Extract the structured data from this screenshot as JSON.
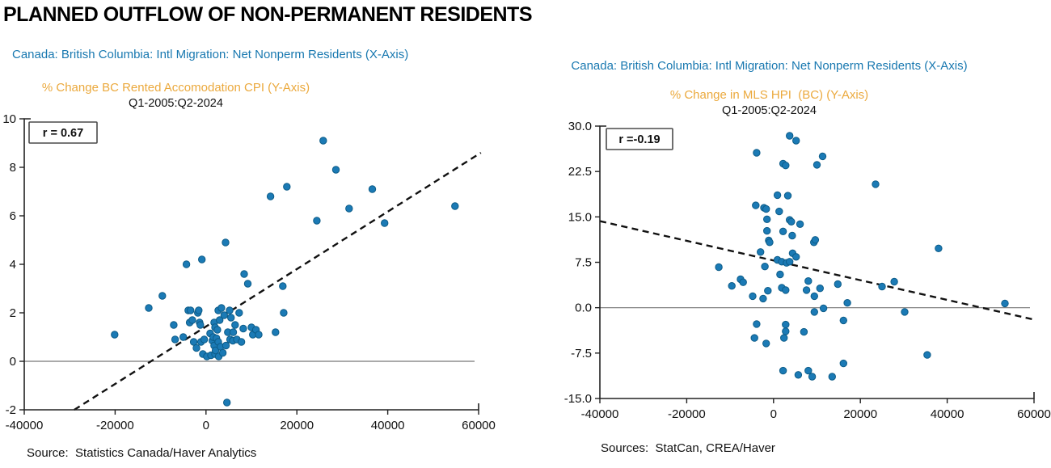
{
  "page": {
    "title": "PLANNED OUTFLOW OF NON-PERMANENT RESIDENTS"
  },
  "colors": {
    "header_blue": "#1878b0",
    "header_orange": "#eba93d",
    "r_red": "#a01c32",
    "dot_fill": "#1b7ab5",
    "dot_stroke": "#0d5c88",
    "axis": "#222222",
    "zero_line": "#777777",
    "trend": "#111111",
    "r_box_border": "#4a4a4a"
  },
  "chart_data": [
    {
      "type": "scatter",
      "x_axis_title": "Canada: British Columbia: Intl Migration: Net Nonperm Residents (X-Axis)",
      "y_axis_title": "% Change BC Rented Accomodation CPI (Y-Axis)",
      "period": "Q1-2005:Q2-2024",
      "r_label": "r = 0.67",
      "source": "Source:  Statistics Canada/Haver Analytics",
      "xlim": [
        -40000,
        60000
      ],
      "ylim": [
        -2,
        10
      ],
      "x_tick_values": [
        -40000,
        -20000,
        0,
        20000,
        40000,
        60000
      ],
      "x_tick_labels": [
        "-40000",
        "-20000",
        "0",
        "20000",
        "40000",
        "60000"
      ],
      "y_tick_values": [
        10,
        8,
        6,
        4,
        2,
        0,
        -2
      ],
      "y_tick_labels": [
        "10",
        "8",
        "6",
        "4",
        "2",
        "0",
        "-2"
      ],
      "zero_line": true,
      "legend_position": "top-left",
      "grid": false,
      "trendline": {
        "style": "dashed",
        "x1": -29000,
        "y1": -2.0,
        "x2": 60500,
        "y2": 8.6
      },
      "points": [
        [
          -20100,
          1.1
        ],
        [
          -12600,
          2.2
        ],
        [
          -9600,
          2.7
        ],
        [
          -7100,
          1.5
        ],
        [
          -6800,
          0.9
        ],
        [
          -5000,
          1.0
        ],
        [
          -4300,
          4.0
        ],
        [
          -3900,
          2.1
        ],
        [
          -3600,
          1.6
        ],
        [
          -3400,
          2.1
        ],
        [
          -3000,
          1.7
        ],
        [
          -2700,
          0.8
        ],
        [
          -2100,
          0.55
        ],
        [
          -1800,
          2.0
        ],
        [
          -1600,
          2.1
        ],
        [
          -1400,
          1.6
        ],
        [
          -1250,
          1.5
        ],
        [
          -1100,
          0.8
        ],
        [
          -900,
          4.2
        ],
        [
          -700,
          0.3
        ],
        [
          -400,
          0.9
        ],
        [
          200,
          0.2
        ],
        [
          900,
          1.15
        ],
        [
          1100,
          0.25
        ],
        [
          1400,
          0.85
        ],
        [
          1600,
          1.0
        ],
        [
          1800,
          1.6
        ],
        [
          1800,
          0.65
        ],
        [
          2000,
          1.4
        ],
        [
          2000,
          0.3
        ],
        [
          2100,
          0.45
        ],
        [
          2300,
          0.95
        ],
        [
          2500,
          1.3
        ],
        [
          2700,
          2.1
        ],
        [
          2700,
          0.8
        ],
        [
          2800,
          0.2
        ],
        [
          3000,
          1.7
        ],
        [
          3200,
          0.6
        ],
        [
          3400,
          2.2
        ],
        [
          3700,
          0.35
        ],
        [
          4000,
          1.9
        ],
        [
          4300,
          4.9
        ],
        [
          4400,
          0.65
        ],
        [
          4600,
          -1.7
        ],
        [
          4800,
          1.2
        ],
        [
          5200,
          2.1
        ],
        [
          5300,
          0.9
        ],
        [
          5500,
          1.8
        ],
        [
          5900,
          0.85
        ],
        [
          6000,
          1.2
        ],
        [
          6400,
          1.5
        ],
        [
          6800,
          0.9
        ],
        [
          7300,
          2.0
        ],
        [
          7800,
          0.8
        ],
        [
          8200,
          1.35
        ],
        [
          8400,
          3.6
        ],
        [
          9200,
          3.2
        ],
        [
          10000,
          1.4
        ],
        [
          10300,
          1.1
        ],
        [
          11000,
          1.3
        ],
        [
          11600,
          1.1
        ],
        [
          14200,
          6.8
        ],
        [
          15300,
          1.2
        ],
        [
          16900,
          3.1
        ],
        [
          17100,
          2.0
        ],
        [
          17800,
          7.2
        ],
        [
          24400,
          5.8
        ],
        [
          25800,
          9.1
        ],
        [
          28600,
          7.9
        ],
        [
          31500,
          6.3
        ],
        [
          36600,
          7.1
        ],
        [
          39300,
          5.7
        ],
        [
          54800,
          6.4
        ]
      ]
    },
    {
      "type": "scatter",
      "x_axis_title": "Canada: British Columbia: Intl Migration: Net Nonperm Residents (X-Axis)",
      "y_axis_title": "% Change in MLS HPI  (BC) (Y-Axis)",
      "period": "Q1-2005:Q2-2024",
      "r_label": "r =-0.19",
      "source": "Sources:  StatCan, CREA/Haver",
      "xlim": [
        -40000,
        60000
      ],
      "ylim": [
        -15,
        30
      ],
      "x_tick_values": [
        -40000,
        -20000,
        0,
        20000,
        40000,
        60000
      ],
      "x_tick_labels": [
        "-40000",
        "-20000",
        "0",
        "20000",
        "40000",
        "60000"
      ],
      "y_tick_values": [
        30,
        22.5,
        15,
        7.5,
        0,
        -7.5,
        -15
      ],
      "y_tick_labels": [
        "30.0",
        "22.5",
        "15.0",
        "7.5",
        "0.0",
        "-7.5",
        "-15.0"
      ],
      "zero_line": true,
      "legend_position": "top-left",
      "grid": false,
      "trendline": {
        "style": "dashed",
        "x1": -40000,
        "y1": 14.3,
        "x2": 59600,
        "y2": -1.9
      },
      "points": [
        [
          -12600,
          6.7
        ],
        [
          -9600,
          3.6
        ],
        [
          -7600,
          4.7
        ],
        [
          -7000,
          4.2
        ],
        [
          -4800,
          1.9
        ],
        [
          -4400,
          -5.0
        ],
        [
          -4100,
          16.9
        ],
        [
          -3900,
          25.6
        ],
        [
          -3900,
          -2.7
        ],
        [
          -3000,
          9.2
        ],
        [
          -2400,
          1.5
        ],
        [
          -2200,
          16.5
        ],
        [
          -2000,
          6.8
        ],
        [
          -1700,
          16.3
        ],
        [
          -1700,
          -5.9
        ],
        [
          -1500,
          14.6
        ],
        [
          -1500,
          12.7
        ],
        [
          -1300,
          2.8
        ],
        [
          -1100,
          11.1
        ],
        [
          -900,
          10.8
        ],
        [
          900,
          18.6
        ],
        [
          900,
          7.9
        ],
        [
          1300,
          15.9
        ],
        [
          1500,
          5.5
        ],
        [
          1900,
          7.6
        ],
        [
          1900,
          3.3
        ],
        [
          2200,
          23.8
        ],
        [
          2200,
          12.6
        ],
        [
          2200,
          -10.4
        ],
        [
          2400,
          -5.0
        ],
        [
          2800,
          23.5
        ],
        [
          2800,
          2.9
        ],
        [
          2800,
          -2.8
        ],
        [
          2800,
          -3.9
        ],
        [
          3000,
          7.4
        ],
        [
          3300,
          18.5
        ],
        [
          3700,
          28.4
        ],
        [
          3700,
          14.5
        ],
        [
          3700,
          7.6
        ],
        [
          4100,
          14.2
        ],
        [
          4300,
          11.9
        ],
        [
          4400,
          9.0
        ],
        [
          5200,
          27.6
        ],
        [
          5200,
          8.4
        ],
        [
          5700,
          -11.1
        ],
        [
          6100,
          13.8
        ],
        [
          7000,
          -4.0
        ],
        [
          7600,
          2.9
        ],
        [
          8000,
          4.4
        ],
        [
          8000,
          -10.4
        ],
        [
          8900,
          -11.4
        ],
        [
          9300,
          10.8
        ],
        [
          9400,
          1.9
        ],
        [
          9400,
          -0.7
        ],
        [
          9600,
          11.2
        ],
        [
          10000,
          23.6
        ],
        [
          10700,
          3.2
        ],
        [
          11300,
          25.0
        ],
        [
          11500,
          -0.1
        ],
        [
          13500,
          -11.4
        ],
        [
          14800,
          3.9
        ],
        [
          16100,
          -9.2
        ],
        [
          16100,
          -2.1
        ],
        [
          17000,
          0.8
        ],
        [
          23500,
          20.4
        ],
        [
          25000,
          3.5
        ],
        [
          27800,
          4.3
        ],
        [
          30200,
          -0.7
        ],
        [
          35400,
          -7.8
        ],
        [
          38000,
          9.8
        ],
        [
          53300,
          0.7
        ]
      ]
    }
  ]
}
